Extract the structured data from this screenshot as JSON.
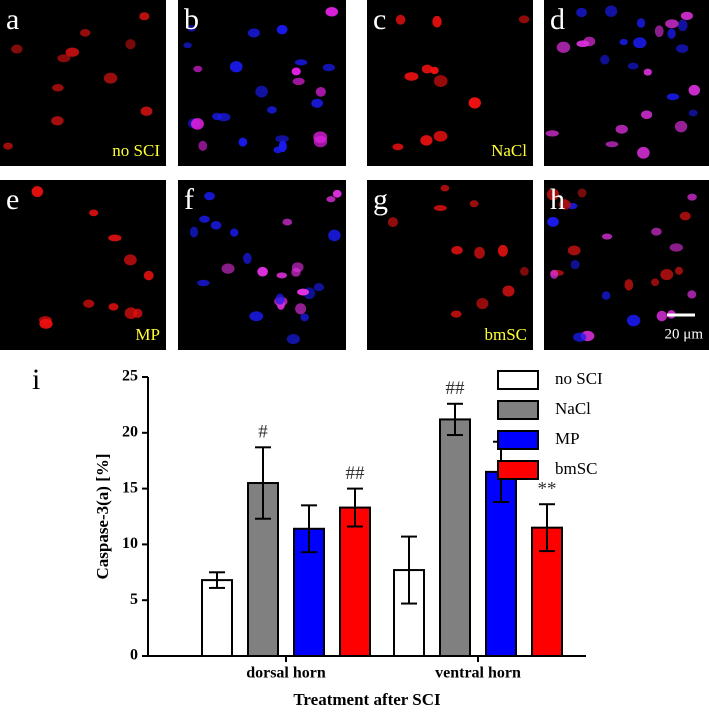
{
  "panels": [
    {
      "label": "a",
      "caption": "no SCI"
    },
    {
      "label": "b"
    },
    {
      "label": "c",
      "caption": "NaCl"
    },
    {
      "label": "d"
    },
    {
      "label": "e",
      "caption": "MP"
    },
    {
      "label": "f"
    },
    {
      "label": "g",
      "caption": "bmSC"
    },
    {
      "label": "h",
      "scale_bar": "20 μm"
    }
  ],
  "chart_data": {
    "type": "bar",
    "panel_label": "i",
    "y_label": "Caspase-3(a) [%]",
    "x_label": "Treatment after SCI",
    "categories": [
      "dorsal horn",
      "ventral horn"
    ],
    "series": [
      {
        "name": "no SCI",
        "color": "#ffffff",
        "values": [
          6.8,
          7.7
        ],
        "errors": [
          0.7,
          3.0
        ],
        "significance": [
          null,
          null
        ]
      },
      {
        "name": "NaCl",
        "color": "#808080",
        "values": [
          15.5,
          21.2
        ],
        "errors": [
          3.2,
          1.4
        ],
        "significance": [
          "#",
          "##"
        ]
      },
      {
        "name": "MP",
        "color": "#0000ff",
        "values": [
          11.4,
          16.5
        ],
        "errors": [
          2.1,
          2.7
        ],
        "significance": [
          null,
          null
        ]
      },
      {
        "name": "bmSC",
        "color": "#ff0000",
        "values": [
          13.3,
          11.5
        ],
        "errors": [
          1.7,
          2.1
        ],
        "significance": [
          "##",
          "**"
        ]
      }
    ],
    "ylim": [
      0,
      25
    ],
    "yticks": [
      0,
      5,
      10,
      15,
      20,
      25
    ]
  }
}
